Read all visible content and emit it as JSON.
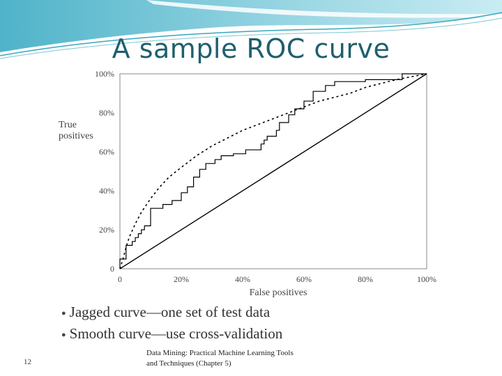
{
  "slide": {
    "title": "A sample ROC curve",
    "bullets": [
      "Jagged curve—one set of test data",
      "Smooth curve—use cross-validation"
    ],
    "page_number": "12",
    "footer_line1": "Data Mining: Practical Machine Learning Tools",
    "footer_line2": "and Techniques (Chapter 5)"
  },
  "colors": {
    "title": "#1f5f6e",
    "banner": "#8fcfdd",
    "curve": "#000000"
  },
  "chart_data": {
    "type": "line",
    "xlabel": "False positives",
    "ylabel": "True positives",
    "xlim": [
      0,
      100
    ],
    "ylim": [
      0,
      100
    ],
    "x_ticks": [
      0,
      20,
      40,
      60,
      80,
      100
    ],
    "x_tick_labels": [
      "0",
      "20%",
      "40%",
      "60%",
      "80%",
      "100%"
    ],
    "y_ticks": [
      0,
      20,
      40,
      60,
      80,
      100
    ],
    "y_tick_labels": [
      "0",
      "20%",
      "40%",
      "60%",
      "80%",
      "100%"
    ],
    "series": [
      {
        "style": "jagged",
        "x": [
          0,
          0,
          2,
          2,
          4,
          4,
          5,
          5,
          6,
          6,
          7,
          7,
          8,
          8,
          10,
          10,
          14,
          14,
          17,
          17,
          20,
          20,
          22,
          22,
          24,
          24,
          26,
          26,
          28,
          28,
          31,
          31,
          33,
          33,
          37,
          37,
          41,
          41,
          46,
          46,
          47,
          47,
          48,
          48,
          51,
          51,
          52,
          52,
          55,
          55,
          57,
          57,
          60,
          60,
          63,
          63,
          67,
          67,
          70,
          70,
          80,
          80,
          92,
          92,
          100
        ],
        "y": [
          0,
          5,
          5,
          12,
          12,
          14,
          14,
          16,
          16,
          18,
          18,
          20,
          20,
          22,
          22,
          31,
          31,
          33,
          33,
          35,
          35,
          39,
          39,
          42,
          42,
          47,
          47,
          51,
          51,
          54,
          54,
          56,
          56,
          58,
          58,
          59,
          59,
          61,
          61,
          64,
          64,
          66,
          66,
          68,
          68,
          71,
          71,
          75,
          75,
          79,
          79,
          82,
          82,
          86,
          86,
          91,
          91,
          94,
          94,
          96,
          96,
          97,
          97,
          100,
          100
        ]
      },
      {
        "style": "smooth",
        "x": [
          0,
          1,
          2,
          3,
          5,
          7,
          10,
          13,
          16,
          20,
          25,
          30,
          35,
          40,
          45,
          50,
          55,
          60,
          65,
          70,
          75,
          80,
          85,
          90,
          95,
          100
        ],
        "y": [
          0,
          5,
          11,
          16,
          23,
          29,
          36,
          42,
          47,
          52,
          58,
          63,
          67,
          71,
          74,
          77,
          80,
          83,
          86,
          88,
          90,
          93,
          95,
          97,
          98.5,
          100
        ]
      },
      {
        "style": "diagonal",
        "x": [
          0,
          100
        ],
        "y": [
          0,
          100
        ]
      }
    ]
  }
}
